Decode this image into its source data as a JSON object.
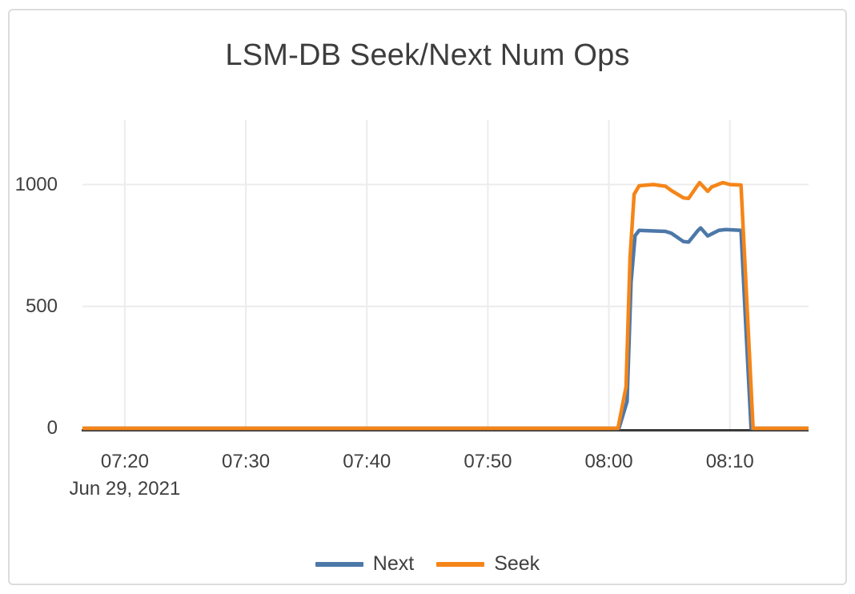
{
  "window": {
    "background": "#ffffff",
    "border_color": "#dcdcdc"
  },
  "chart_data": {
    "type": "line",
    "title": "LSM-DB Seek/Next Num Ops",
    "x_axis": {
      "domain": [
        "07:16:30",
        "08:16:30"
      ],
      "tick_labels": [
        "07:20",
        "07:30",
        "07:40",
        "07:50",
        "08:00",
        "08:10"
      ],
      "date_label": "Jun 29, 2021"
    },
    "y_axis": {
      "tick_labels": [
        "0",
        "500",
        "1000"
      ],
      "tick_values": [
        0,
        500,
        1000
      ],
      "range": [
        0,
        1260
      ]
    },
    "grid": true,
    "legend_position": "bottom",
    "colors": {
      "grid": "#ececec",
      "axis_line": "#3a3a3a",
      "text": "#3f3f3f"
    },
    "series": [
      {
        "name": "Next",
        "color": "#4c78a8",
        "points": [
          [
            "07:16:30",
            0
          ],
          [
            "07:30:00",
            0
          ],
          [
            "07:45:00",
            0
          ],
          [
            "08:00:00",
            0
          ],
          [
            "08:00:50",
            0
          ],
          [
            "08:01:30",
            110
          ],
          [
            "08:01:50",
            600
          ],
          [
            "08:02:10",
            790
          ],
          [
            "08:02:30",
            812
          ],
          [
            "08:03:30",
            810
          ],
          [
            "08:04:40",
            808
          ],
          [
            "08:05:10",
            800
          ],
          [
            "08:06:10",
            766
          ],
          [
            "08:06:35",
            764
          ],
          [
            "08:07:20",
            810
          ],
          [
            "08:07:35",
            822
          ],
          [
            "08:08:10",
            789
          ],
          [
            "08:09:05",
            812
          ],
          [
            "08:09:40",
            815
          ],
          [
            "08:10:55",
            812
          ],
          [
            "08:11:20",
            400
          ],
          [
            "08:11:45",
            0
          ],
          [
            "08:16:30",
            0
          ]
        ]
      },
      {
        "name": "Seek",
        "color": "#f58518",
        "points": [
          [
            "07:16:30",
            0
          ],
          [
            "07:30:00",
            0
          ],
          [
            "07:45:00",
            0
          ],
          [
            "08:00:00",
            0
          ],
          [
            "08:00:45",
            0
          ],
          [
            "08:01:25",
            170
          ],
          [
            "08:01:45",
            700
          ],
          [
            "08:02:05",
            960
          ],
          [
            "08:02:30",
            995
          ],
          [
            "08:03:40",
            1000
          ],
          [
            "08:04:40",
            993
          ],
          [
            "08:05:10",
            975
          ],
          [
            "08:06:10",
            945
          ],
          [
            "08:06:35",
            943
          ],
          [
            "08:07:10",
            985
          ],
          [
            "08:07:30",
            1008
          ],
          [
            "08:08:10",
            972
          ],
          [
            "08:08:30",
            990
          ],
          [
            "08:09:25",
            1008
          ],
          [
            "08:10:00",
            1000
          ],
          [
            "08:10:55",
            998
          ],
          [
            "08:11:25",
            500
          ],
          [
            "08:11:55",
            0
          ],
          [
            "08:16:30",
            0
          ]
        ]
      }
    ]
  }
}
